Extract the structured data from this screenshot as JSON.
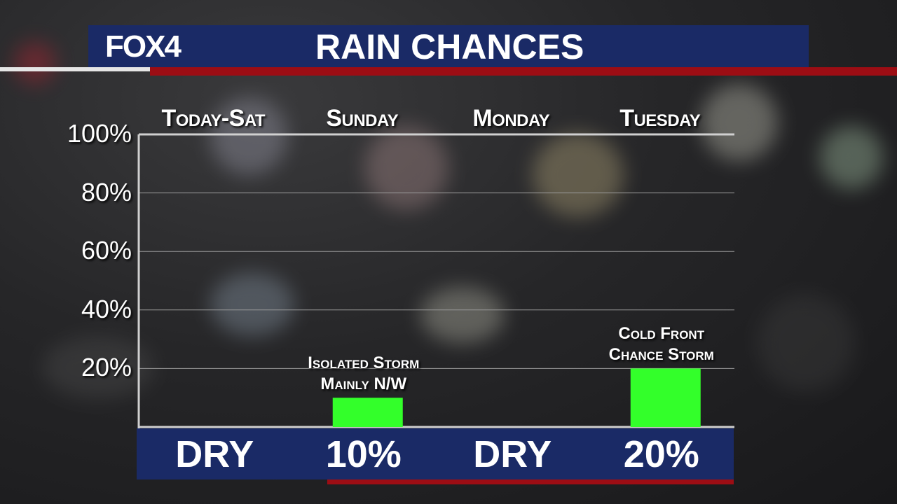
{
  "header": {
    "logo": "FOX4",
    "title": "RAIN CHANCES"
  },
  "colors": {
    "navy": "#1a2a66",
    "red": "#9c0d14",
    "bar": "#33ff2a"
  },
  "chart_data": {
    "type": "bar",
    "title": "RAIN CHANCES",
    "categories": [
      "Today-Sat",
      "Sunday",
      "Monday",
      "Tuesday"
    ],
    "values": [
      0,
      10,
      0,
      20
    ],
    "value_labels": [
      "DRY",
      "10%",
      "DRY",
      "20%"
    ],
    "annotations": [
      "",
      "Isolated Storm\nMainly N/W",
      "",
      "Cold Front\nChance Storm"
    ],
    "yticks": [
      "100%",
      "80%",
      "60%",
      "40%",
      "20%"
    ],
    "ylim": [
      0,
      100
    ],
    "grid": true
  }
}
